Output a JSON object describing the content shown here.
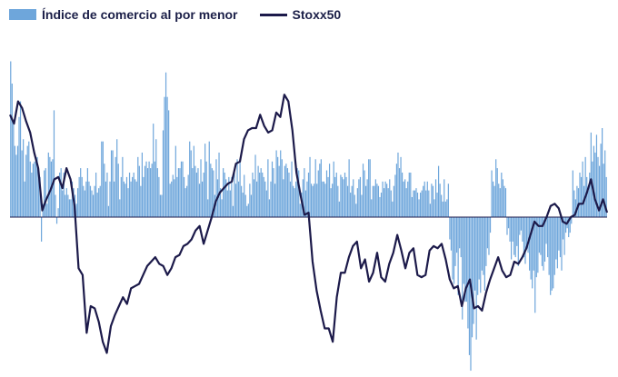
{
  "colors": {
    "bars": "#6ea6db",
    "line": "#1c1a4a",
    "zero_line": "#1c1a4a",
    "text": "#1b1f48"
  },
  "legend": {
    "bars_label": "Índice de comercio al por menor",
    "line_label": "Stoxx50"
  },
  "chart_data": {
    "type": "bar",
    "combo": "bar+line",
    "title": "",
    "xlabel": "",
    "ylabel": "",
    "grid": false,
    "axis_labels_shown": false,
    "legend_position": "top-left",
    "series": [
      {
        "name": "Índice de comercio al por menor",
        "kind": "bar",
        "values": [
          7.0,
          6.0,
          4.2,
          3.2,
          2.8,
          3.2,
          4.5,
          5.2,
          3.0,
          3.5,
          1.6,
          2.8,
          3.2,
          3.4,
          2.5,
          2.0,
          2.4,
          2.5,
          2.5,
          2.7,
          2.0,
          1.8,
          -1.1,
          0.6,
          2.1,
          2.2,
          0.6,
          2.9,
          2.7,
          2.5,
          2.6,
          4.8,
          1.0,
          -0.3,
          0.4,
          2.0,
          2.2,
          1.2,
          2.0,
          1.0,
          1.3,
          1.0,
          0.8,
          0.8,
          1.6,
          1.3,
          1.0,
          0.6,
          1.3,
          1.8,
          2.2,
          1.8,
          1.4,
          1.2,
          1.6,
          2.2,
          1.6,
          1.4,
          1.2,
          1.0,
          1.4,
          2.0,
          1.1,
          1.3,
          1.4,
          3.4,
          3.4,
          2.4,
          1.6,
          2.0,
          0.5,
          1.6,
          3.0,
          3.0,
          1.6,
          2.7,
          3.5,
          2.4,
          0.8,
          1.8,
          2.7,
          1.6,
          1.5,
          1.8,
          1.3,
          2.0,
          1.6,
          1.8,
          2.0,
          1.7,
          1.6,
          2.7,
          2.3,
          1.4,
          2.9,
          1.8,
          2.3,
          2.5,
          2.2,
          2.5,
          2.2,
          2.4,
          4.2,
          2.5,
          3.5,
          2.2,
          1.8,
          1.0,
          1.0,
          3.9,
          5.4,
          6.5,
          5.4,
          4.8,
          1.5,
          1.6,
          1.9,
          1.7,
          3.2,
          1.8,
          2.2,
          2.2,
          2.5,
          2.5,
          1.8,
          1.3,
          1.4,
          1.9,
          3.4,
          3.0,
          2.2,
          3.2,
          2.3,
          2.0,
          2.2,
          1.5,
          2.6,
          1.6,
          2.0,
          3.3,
          2.5,
          0.8,
          3.4,
          2.4,
          2.2,
          2.1,
          1.0,
          2.6,
          1.7,
          2.9,
          1.3,
          0.8,
          2.2,
          2.0,
          1.7,
          1.2,
          1.8,
          1.2,
          1.8,
          0.5,
          2.0,
          1.5,
          2.6,
          1.6,
          2.5,
          1.4,
          1.1,
          1.9,
          1.0,
          0.5,
          0.6,
          1.5,
          1.0,
          2.0,
          1.7,
          2.8,
          1.6,
          2.3,
          2.0,
          2.2,
          2.0,
          1.8,
          1.6,
          1.2,
          2.6,
          0.8,
          1.6,
          2.5,
          2.2,
          1.5,
          3.0,
          2.7,
          2.3,
          3.0,
          2.6,
          1.7,
          2.3,
          2.4,
          2.2,
          2.0,
          1.6,
          2.5,
          1.4,
          1.3,
          1.6,
          2.2,
          2.1,
          0.6,
          1.1,
          1.7,
          2.2,
          1.2,
          1.6,
          2.0,
          2.7,
          1.5,
          1.4,
          1.5,
          2.6,
          1.5,
          2.1,
          2.4,
          2.6,
          1.6,
          1.6,
          1.5,
          2.1,
          1.8,
          2.4,
          1.3,
          1.5,
          2.5,
          1.8,
          2.0,
          1.4,
          0.7,
          1.9,
          1.8,
          1.7,
          2.0,
          1.8,
          1.4,
          2.6,
          1.1,
          1.4,
          1.7,
          1.0,
          0.6,
          1.3,
          1.7,
          1.8,
          1.0,
          2.4,
          2.1,
          1.4,
          1.7,
          2.6,
          2.6,
          0.8,
          1.4,
          1.4,
          1.7,
          1.5,
          1.4,
          0.9,
          1.1,
          1.6,
          1.3,
          1.6,
          1.5,
          1.3,
          1.7,
          1.2,
          0.7,
          1.4,
          1.9,
          2.4,
          2.9,
          2.2,
          2.7,
          2.0,
          1.6,
          1.7,
          1.3,
          1.6,
          2.0,
          2.0,
          0.9,
          1.2,
          1.2,
          1.3,
          1.1,
          0.8,
          1.1,
          1.2,
          1.4,
          1.6,
          1.2,
          1.6,
          1.2,
          0.6,
          1.5,
          1.4,
          0.8,
          1.7,
          1.1,
          2.3,
          1.5,
          1.0,
          0.7,
          1.7,
          0.7,
          0.8,
          1.5,
          -1.0,
          -1.5,
          -2.8,
          -3.0,
          -2.2,
          -1.6,
          -3.5,
          -1.4,
          -1.8,
          -4.6,
          -3.0,
          -3.8,
          -3.8,
          -5.0,
          -6.2,
          -6.9,
          -5.4,
          -4.8,
          -3.3,
          -5.5,
          -3.5,
          -2.8,
          -3.4,
          -2.4,
          -2.6,
          -3.3,
          -2.2,
          -1.4,
          -1.7,
          -0.7,
          2.1,
          1.6,
          1.4,
          2.6,
          2.2,
          1.5,
          1.3,
          2.0,
          1.7,
          1.4,
          1.3,
          -0.8,
          -0.5,
          -1.1,
          -1.9,
          -1.1,
          -1.7,
          -1.8,
          -1.3,
          -2.2,
          -0.8,
          -0.6,
          -1.1,
          -1.8,
          -2.1,
          -1.3,
          -1.6,
          -2.4,
          -2.8,
          -3.2,
          -2.4,
          -4.3,
          -2.7,
          -2.5,
          -1.6,
          -1.7,
          -2.2,
          -2.4,
          -2.0,
          -1.2,
          -1.8,
          -2.6,
          -3.5,
          -3.3,
          -3.2,
          -2.6,
          -1.9,
          -2.3,
          -1.5,
          -1.8,
          -2.4,
          -1.0,
          -1.7,
          -0.7,
          -0.5,
          -0.9,
          -0.7,
          -0.3,
          2.1,
          1.2,
          0.8,
          1.4,
          1.3,
          2.0,
          1.8,
          2.5,
          1.4,
          2.7,
          1.8,
          1.2,
          2.0,
          3.8,
          2.5,
          3.2,
          2.9,
          3.7,
          2.7,
          2.3,
          3.3,
          4.0,
          2.4,
          3.0,
          1.8
        ]
      },
      {
        "name": "Stoxx50",
        "kind": "line",
        "values": [
          4.6,
          4.2,
          5.2,
          4.9,
          4.3,
          3.8,
          2.9,
          2.2,
          0.3,
          0.8,
          1.2,
          1.7,
          1.8,
          1.3,
          2.2,
          1.7,
          0.5,
          -2.3,
          -2.6,
          -5.2,
          -4.0,
          -4.1,
          -4.7,
          -5.6,
          -6.1,
          -4.9,
          -4.4,
          -4.0,
          -3.6,
          -3.9,
          -3.2,
          -3.1,
          -3.0,
          -2.6,
          -2.2,
          -2.0,
          -1.8,
          -2.1,
          -2.2,
          -2.6,
          -2.3,
          -1.8,
          -1.7,
          -1.3,
          -1.2,
          -1.0,
          -0.6,
          -0.4,
          -1.2,
          -0.6,
          0.0,
          0.7,
          1.1,
          1.3,
          1.5,
          1.6,
          2.4,
          2.5,
          3.5,
          3.9,
          4.0,
          4.0,
          4.6,
          4.1,
          3.8,
          3.9,
          4.7,
          4.5,
          5.5,
          5.2,
          3.9,
          2.0,
          1.0,
          0.1,
          0.2,
          -2.0,
          -3.3,
          -4.2,
          -5.0,
          -5.0,
          -5.6,
          -3.6,
          -2.5,
          -2.5,
          -1.8,
          -1.3,
          -1.1,
          -2.3,
          -1.9,
          -2.9,
          -2.5,
          -1.6,
          -2.7,
          -2.9,
          -2.1,
          -1.6,
          -0.8,
          -1.5,
          -2.3,
          -1.6,
          -1.4,
          -2.6,
          -2.7,
          -2.6,
          -1.5,
          -1.3,
          -1.4,
          -1.2,
          -1.9,
          -2.8,
          -3.2,
          -3.1,
          -4.0,
          -3.2,
          -2.8,
          -4.1,
          -4.0,
          -4.2,
          -3.4,
          -2.8,
          -2.3,
          -1.8,
          -2.4,
          -2.7,
          -2.6,
          -2.0,
          -2.1,
          -1.8,
          -1.4,
          -0.8,
          -0.2,
          -0.4,
          -0.4,
          0.0,
          0.5,
          0.6,
          0.4,
          -0.2,
          -0.3,
          0.0,
          0.1,
          0.6,
          0.6,
          1.1,
          1.7,
          0.8,
          0.3,
          0.8,
          0.2
        ]
      }
    ]
  }
}
